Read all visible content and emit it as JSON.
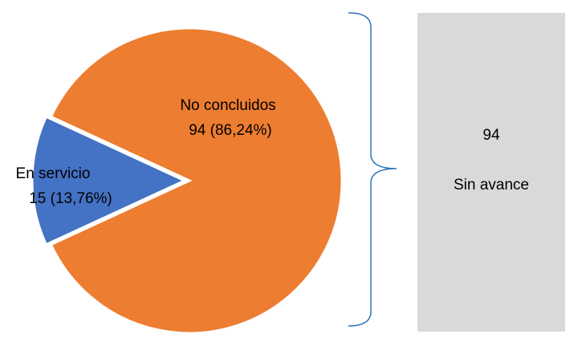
{
  "chart_data": {
    "type": "pie",
    "series": [
      {
        "name": "No concluidos",
        "value": 94,
        "percent_label": "94 (86,24%)",
        "color": "#ed7d31"
      },
      {
        "name": "En servicio",
        "value": 15,
        "percent_label": "15 (13,76%)",
        "color": "#4472c4"
      }
    ],
    "exploded_slice": "En servicio"
  },
  "side_box": {
    "value": "94",
    "caption": "Sin avance",
    "color": "#d9d9d9"
  },
  "bracket": {
    "color": "#2e75b6"
  }
}
